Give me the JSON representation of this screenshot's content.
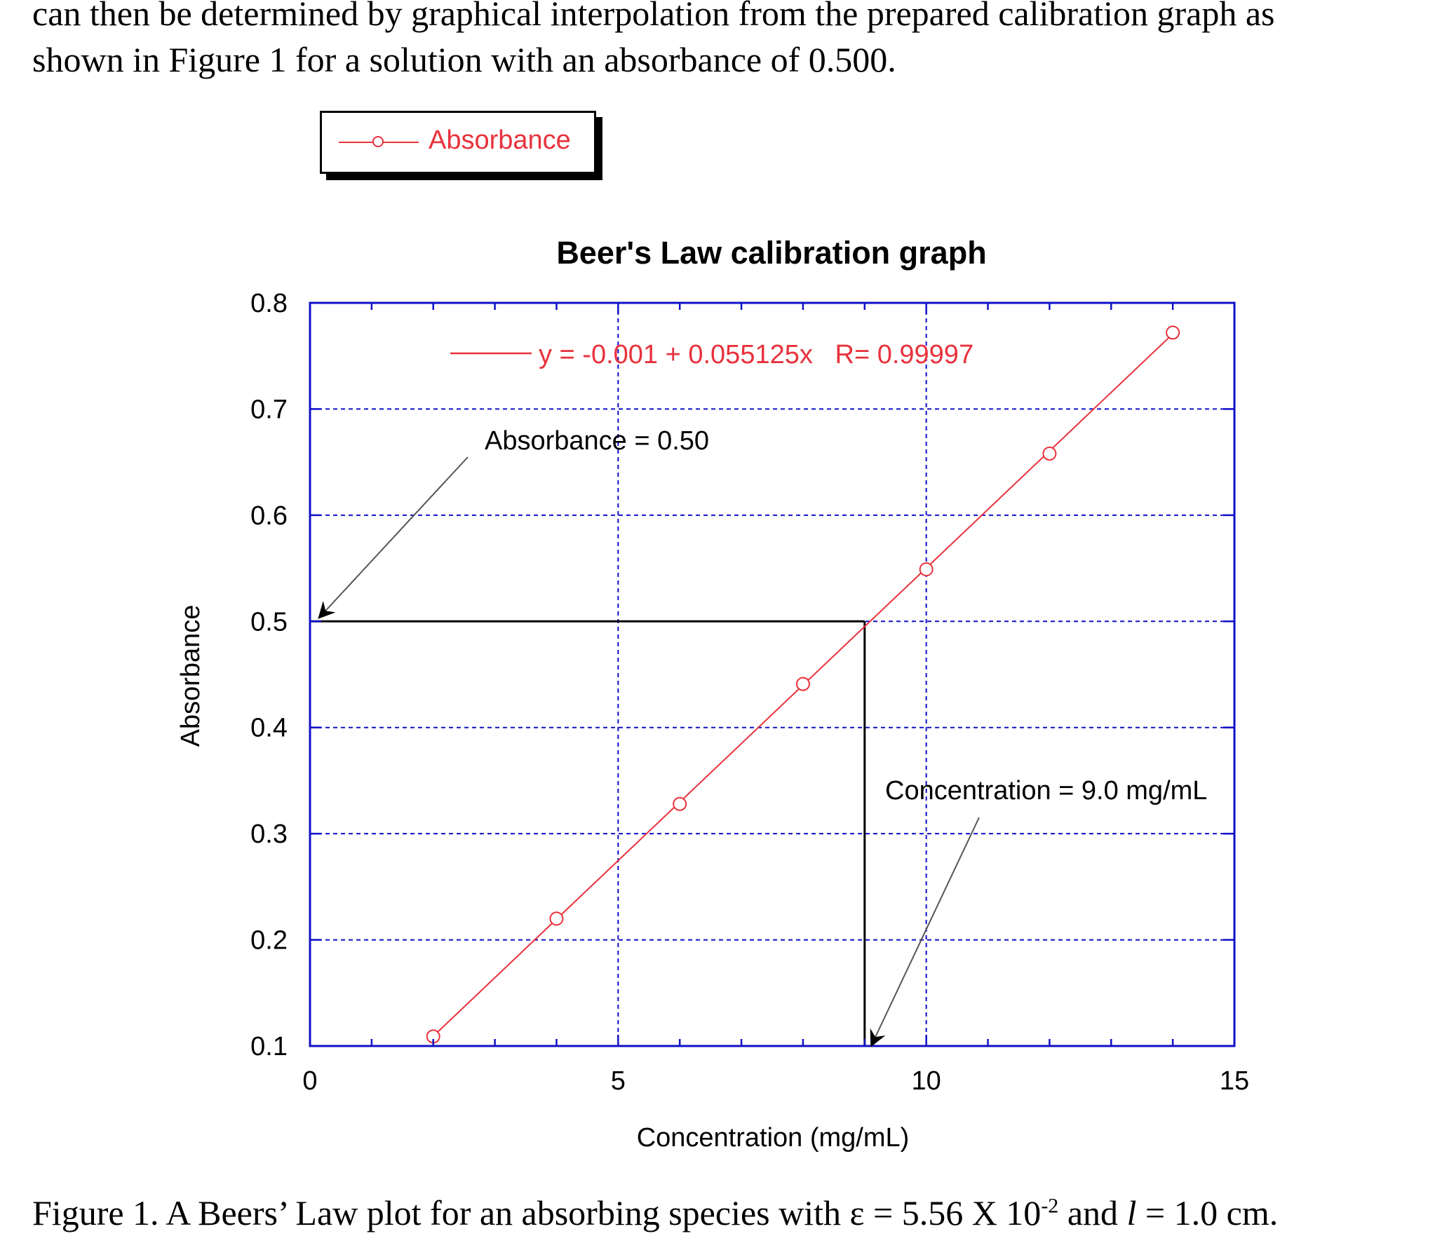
{
  "document": {
    "intro_line_1": "can then be determined by graphical interpolation from the prepared calibration graph as",
    "intro_line_2": "shown in Figure 1 for a solution with an absorbance of 0.500.",
    "caption_part_1": "Figure 1. A Beers’ Law plot for an absorbing species with ε = 5.56 X 10",
    "caption_superscript": "-2",
    "caption_part_2": " and ",
    "caption_italic": "l",
    "caption_part_3": " = 1.0 cm."
  },
  "legend": {
    "label": "Absorbance"
  },
  "colors": {
    "frame": "#1010c8",
    "grid": "#1010c8",
    "series": "#e8323c",
    "annotation": "#000000",
    "pointer": "#555555"
  },
  "chart_data": {
    "type": "scatter",
    "title": "Beer's Law calibration graph",
    "xlabel": "Concentration (mg/mL)",
    "ylabel": "Absorbance",
    "xlim": [
      0,
      15
    ],
    "ylim": [
      0.1,
      0.8
    ],
    "x_ticks": [
      0,
      5,
      10,
      15
    ],
    "y_ticks": [
      0.1,
      0.2,
      0.3,
      0.4,
      0.5,
      0.6,
      0.7,
      0.8
    ],
    "grid": true,
    "series": [
      {
        "name": "Absorbance",
        "x": [
          2,
          4,
          6,
          8,
          10,
          12,
          14
        ],
        "y": [
          0.109,
          0.22,
          0.328,
          0.441,
          0.549,
          0.658,
          0.772
        ]
      }
    ],
    "fit": {
      "label": "y = -0.001 + 0.055125x   R= 0.99997",
      "intercept": -0.001,
      "slope": 0.055125,
      "x_range": [
        2,
        14
      ]
    },
    "annotations": [
      {
        "id": "absorbance",
        "text": "Absorbance = 0.50",
        "value": 0.5
      },
      {
        "id": "concentration",
        "text": "Concentration = 9.0 mg/mL",
        "value": 9.0
      }
    ]
  }
}
